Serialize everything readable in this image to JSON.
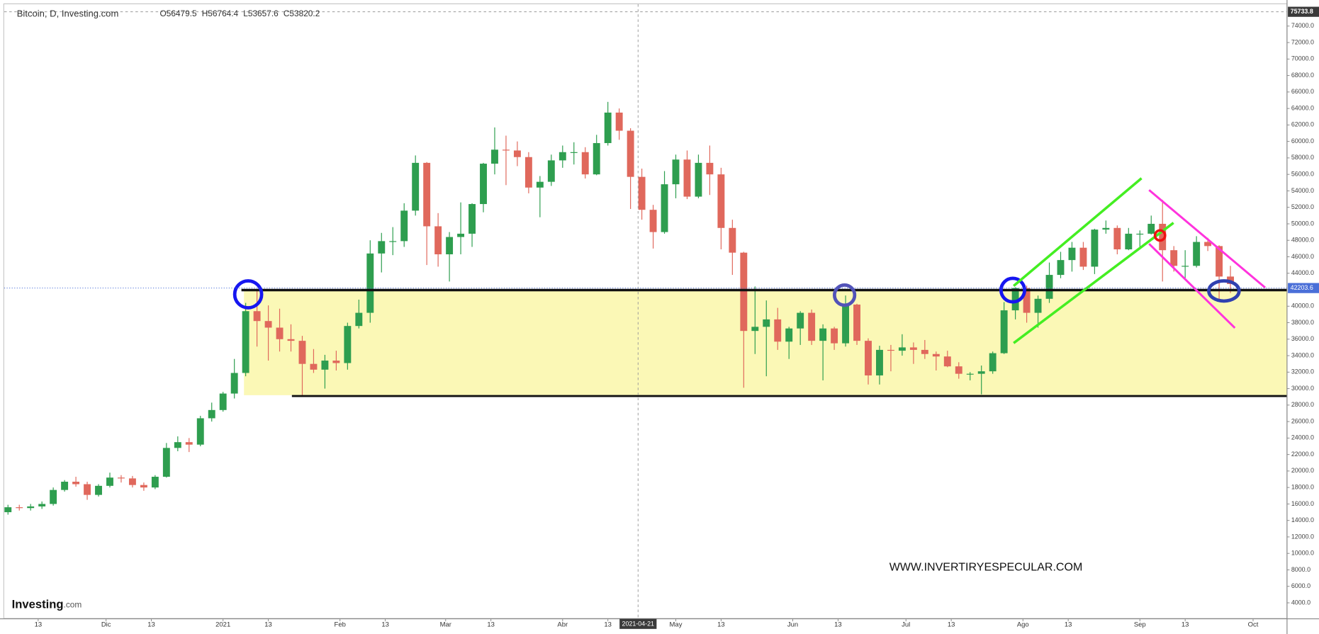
{
  "chart_data": {
    "type": "candlestick",
    "title": "Bitcoin, D, Investing.com",
    "header_values": [
      "O56479.5",
      "H56764.4",
      "L53657.6",
      "C53820.2"
    ],
    "watermark": "WWW.INVERTIRYESPECULAR.COM",
    "logo": [
      "Investing",
      ".com"
    ],
    "up_color": "#2e9e4f",
    "down_color": "#e0685c",
    "last_price": 42203.6,
    "crosshair": {
      "date": "2021-04-21",
      "price": 75733.8
    },
    "xlim": [
      "2020-11-04",
      "2021-10-10"
    ],
    "ylim": [
      2160,
      76650
    ],
    "xticks": [
      {
        "value": "2020-11-13",
        "label": "13"
      },
      {
        "value": "2020-12-01",
        "label": "Dic"
      },
      {
        "value": "2020-12-13",
        "label": "13"
      },
      {
        "value": "2021-01-01",
        "label": "2021"
      },
      {
        "value": "2021-01-13",
        "label": "13"
      },
      {
        "value": "2021-02-01",
        "label": "Feb"
      },
      {
        "value": "2021-02-13",
        "label": "13"
      },
      {
        "value": "2021-03-01",
        "label": "Mar"
      },
      {
        "value": "2021-03-13",
        "label": "13"
      },
      {
        "value": "2021-04-01",
        "label": "Abr"
      },
      {
        "value": "2021-04-13",
        "label": "13"
      },
      {
        "value": "2021-05-01",
        "label": "May"
      },
      {
        "value": "2021-05-13",
        "label": "13"
      },
      {
        "value": "2021-06-01",
        "label": "Jun"
      },
      {
        "value": "2021-06-13",
        "label": "13"
      },
      {
        "value": "2021-07-01",
        "label": "Jul"
      },
      {
        "value": "2021-07-13",
        "label": "13"
      },
      {
        "value": "2021-08-01",
        "label": "Ago"
      },
      {
        "value": "2021-08-13",
        "label": "13"
      },
      {
        "value": "2021-09-01",
        "label": "Sep"
      },
      {
        "value": "2021-09-13",
        "label": "13"
      },
      {
        "value": "2021-10-01",
        "label": "Oct"
      }
    ],
    "yticks": [
      {
        "value": 4000,
        "label": "4000.0"
      },
      {
        "value": 6000,
        "label": "6000.0"
      },
      {
        "value": 8000,
        "label": "8000.0"
      },
      {
        "value": 10000,
        "label": "10000.0"
      },
      {
        "value": 12000,
        "label": "12000.0"
      },
      {
        "value": 14000,
        "label": "14000.0"
      },
      {
        "value": 16000,
        "label": "16000.0"
      },
      {
        "value": 18000,
        "label": "18000.0"
      },
      {
        "value": 20000,
        "label": "20000.0"
      },
      {
        "value": 22000,
        "label": "22000.0"
      },
      {
        "value": 24000,
        "label": "24000.0"
      },
      {
        "value": 26000,
        "label": "26000.0"
      },
      {
        "value": 28000,
        "label": "28000.0"
      },
      {
        "value": 30000,
        "label": "30000.0"
      },
      {
        "value": 32000,
        "label": "32000.0"
      },
      {
        "value": 34000,
        "label": "34000.0"
      },
      {
        "value": 36000,
        "label": "36000.0"
      },
      {
        "value": 38000,
        "label": "38000.0"
      },
      {
        "value": 40000,
        "label": "40000.0"
      },
      {
        "value": 44000,
        "label": "44000.0"
      },
      {
        "value": 46000,
        "label": "46000.0"
      },
      {
        "value": 48000,
        "label": "48000.0"
      },
      {
        "value": 50000,
        "label": "50000.0"
      },
      {
        "value": 52000,
        "label": "52000.0"
      },
      {
        "value": 54000,
        "label": "54000.0"
      },
      {
        "value": 56000,
        "label": "56000.0"
      },
      {
        "value": 58000,
        "label": "58000.0"
      },
      {
        "value": 60000,
        "label": "60000.0"
      },
      {
        "value": 62000,
        "label": "62000.0"
      },
      {
        "value": 64000,
        "label": "64000.0"
      },
      {
        "value": 66000,
        "label": "66000.0"
      },
      {
        "value": 68000,
        "label": "68000.0"
      },
      {
        "value": 70000,
        "label": "70000.0"
      },
      {
        "value": 72000,
        "label": "72000.0"
      },
      {
        "value": 74000,
        "label": "74000.0"
      }
    ],
    "x": [
      "2020-11-05",
      "2020-11-08",
      "2020-11-11",
      "2020-11-14",
      "2020-11-17",
      "2020-11-20",
      "2020-11-23",
      "2020-11-26",
      "2020-11-29",
      "2020-12-02",
      "2020-12-05",
      "2020-12-08",
      "2020-12-11",
      "2020-12-14",
      "2020-12-17",
      "2020-12-20",
      "2020-12-23",
      "2020-12-26",
      "2020-12-29",
      "2021-01-01",
      "2021-01-04",
      "2021-01-07",
      "2021-01-10",
      "2021-01-13",
      "2021-01-16",
      "2021-01-19",
      "2021-01-22",
      "2021-01-25",
      "2021-01-28",
      "2021-01-31",
      "2021-02-03",
      "2021-02-06",
      "2021-02-09",
      "2021-02-12",
      "2021-02-15",
      "2021-02-18",
      "2021-02-21",
      "2021-02-24",
      "2021-02-27",
      "2021-03-02",
      "2021-03-05",
      "2021-03-08",
      "2021-03-11",
      "2021-03-14",
      "2021-03-17",
      "2021-03-20",
      "2021-03-23",
      "2021-03-26",
      "2021-03-29",
      "2021-04-01",
      "2021-04-04",
      "2021-04-07",
      "2021-04-10",
      "2021-04-13",
      "2021-04-16",
      "2021-04-19",
      "2021-04-22",
      "2021-04-25",
      "2021-04-28",
      "2021-05-01",
      "2021-05-04",
      "2021-05-07",
      "2021-05-10",
      "2021-05-13",
      "2021-05-16",
      "2021-05-19",
      "2021-05-22",
      "2021-05-25",
      "2021-05-28",
      "2021-05-31",
      "2021-06-03",
      "2021-06-06",
      "2021-06-09",
      "2021-06-12",
      "2021-06-15",
      "2021-06-18",
      "2021-06-21",
      "2021-06-24",
      "2021-06-27",
      "2021-06-30",
      "2021-07-03",
      "2021-07-06",
      "2021-07-09",
      "2021-07-12",
      "2021-07-15",
      "2021-07-18",
      "2021-07-21",
      "2021-07-24",
      "2021-07-27",
      "2021-07-30",
      "2021-08-02",
      "2021-08-05",
      "2021-08-08",
      "2021-08-11",
      "2021-08-14",
      "2021-08-17",
      "2021-08-20",
      "2021-08-23",
      "2021-08-26",
      "2021-08-29",
      "2021-09-01",
      "2021-09-04",
      "2021-09-07",
      "2021-09-10",
      "2021-09-13",
      "2021-09-16",
      "2021-09-19",
      "2021-09-22",
      "2021-09-25"
    ],
    "ohlc": [
      [
        15000,
        15900,
        14700,
        15600
      ],
      [
        15600,
        15900,
        15200,
        15500
      ],
      [
        15500,
        16000,
        15200,
        15700
      ],
      [
        15700,
        16300,
        15400,
        16000
      ],
      [
        16000,
        18000,
        15800,
        17700
      ],
      [
        17700,
        18900,
        17500,
        18700
      ],
      [
        18700,
        19300,
        18100,
        18400
      ],
      [
        18400,
        18700,
        16500,
        17100
      ],
      [
        17100,
        18400,
        16900,
        18200
      ],
      [
        18200,
        19800,
        18000,
        19200
      ],
      [
        19200,
        19500,
        18600,
        19100
      ],
      [
        19100,
        19400,
        18000,
        18300
      ],
      [
        18300,
        18600,
        17600,
        18000
      ],
      [
        18000,
        19500,
        17800,
        19300
      ],
      [
        19300,
        23400,
        19200,
        22800
      ],
      [
        22800,
        24200,
        22400,
        23500
      ],
      [
        23500,
        24000,
        22300,
        23200
      ],
      [
        23200,
        26700,
        23000,
        26400
      ],
      [
        26400,
        28300,
        26000,
        27400
      ],
      [
        27400,
        29600,
        27200,
        29400
      ],
      [
        29400,
        33600,
        28800,
        31900
      ],
      [
        31900,
        40400,
        31500,
        39400
      ],
      [
        39400,
        41900,
        35100,
        38200
      ],
      [
        38200,
        40100,
        33400,
        37400
      ],
      [
        37400,
        39700,
        34500,
        36000
      ],
      [
        36000,
        37800,
        34500,
        35800
      ],
      [
        35800,
        36400,
        29100,
        33000
      ],
      [
        33000,
        34800,
        31900,
        32300
      ],
      [
        32300,
        34100,
        30000,
        33400
      ],
      [
        33400,
        34600,
        32200,
        33100
      ],
      [
        33100,
        38000,
        32300,
        37600
      ],
      [
        37600,
        40800,
        37300,
        39200
      ],
      [
        39200,
        48000,
        38000,
        46400
      ],
      [
        46400,
        48900,
        44100,
        47900
      ],
      [
        47900,
        49600,
        46200,
        47900
      ],
      [
        47900,
        52500,
        47200,
        51600
      ],
      [
        51600,
        58300,
        51000,
        57400
      ],
      [
        57400,
        57500,
        45000,
        49700
      ],
      [
        49700,
        51300,
        44800,
        46300
      ],
      [
        46300,
        49000,
        43000,
        48400
      ],
      [
        48400,
        52600,
        46300,
        48800
      ],
      [
        48800,
        52500,
        47200,
        52400
      ],
      [
        52400,
        57400,
        51400,
        57300
      ],
      [
        57300,
        61700,
        56000,
        59000
      ],
      [
        59000,
        60700,
        54700,
        58900
      ],
      [
        58900,
        60000,
        57000,
        58100
      ],
      [
        58100,
        58700,
        53700,
        54400
      ],
      [
        54400,
        55800,
        50800,
        55100
      ],
      [
        55100,
        58400,
        54600,
        57700
      ],
      [
        57700,
        59500,
        56800,
        58700
      ],
      [
        58700,
        59900,
        57200,
        58700
      ],
      [
        58700,
        59300,
        55500,
        56000
      ],
      [
        56000,
        60800,
        55900,
        59800
      ],
      [
        59800,
        64800,
        59500,
        63500
      ],
      [
        63500,
        64000,
        60200,
        61300
      ],
      [
        61300,
        61600,
        51800,
        55700
      ],
      [
        55700,
        56700,
        50500,
        51700
      ],
      [
        51700,
        52300,
        47000,
        49000
      ],
      [
        49000,
        56400,
        48800,
        54800
      ],
      [
        54800,
        58400,
        53100,
        57800
      ],
      [
        57800,
        58900,
        53000,
        53300
      ],
      [
        53300,
        58400,
        53100,
        57400
      ],
      [
        57400,
        59500,
        53500,
        56000
      ],
      [
        56000,
        56800,
        46900,
        49500
      ],
      [
        49500,
        50500,
        43800,
        46500
      ],
      [
        46500,
        46600,
        30100,
        37000
      ],
      [
        37000,
        42400,
        34200,
        37500
      ],
      [
        37500,
        40700,
        31500,
        38400
      ],
      [
        38400,
        39800,
        34700,
        35700
      ],
      [
        35700,
        37500,
        33600,
        37300
      ],
      [
        37300,
        39400,
        35300,
        39200
      ],
      [
        39200,
        39600,
        35300,
        35800
      ],
      [
        35800,
        37800,
        31000,
        37300
      ],
      [
        37300,
        37500,
        34700,
        35500
      ],
      [
        35500,
        41300,
        35100,
        40200
      ],
      [
        40200,
        40300,
        35300,
        35800
      ],
      [
        35800,
        36100,
        30500,
        31600
      ],
      [
        31600,
        35200,
        30500,
        34700
      ],
      [
        34700,
        35300,
        32100,
        34600
      ],
      [
        34600,
        36600,
        34000,
        35000
      ],
      [
        35000,
        35600,
        33000,
        34700
      ],
      [
        34700,
        35900,
        33600,
        34200
      ],
      [
        34200,
        34500,
        32200,
        33900
      ],
      [
        33900,
        34600,
        32600,
        32700
      ],
      [
        32700,
        33200,
        31200,
        31800
      ],
      [
        31800,
        32000,
        31000,
        31800
      ],
      [
        31800,
        32800,
        29300,
        32100
      ],
      [
        32100,
        34500,
        31800,
        34300
      ],
      [
        34300,
        40500,
        34200,
        39500
      ],
      [
        39500,
        42300,
        38400,
        42200
      ],
      [
        42200,
        42500,
        38000,
        39200
      ],
      [
        39200,
        41300,
        37400,
        40900
      ],
      [
        40900,
        45300,
        40400,
        43800
      ],
      [
        43800,
        46600,
        43400,
        45600
      ],
      [
        45600,
        47800,
        44200,
        47100
      ],
      [
        47100,
        47800,
        44400,
        44800
      ],
      [
        44800,
        49400,
        43900,
        49300
      ],
      [
        49300,
        50400,
        48800,
        49500
      ],
      [
        49500,
        49800,
        46300,
        46900
      ],
      [
        46900,
        49500,
        46800,
        48800
      ],
      [
        48800,
        49200,
        46900,
        48800
      ],
      [
        48800,
        51000,
        48700,
        50000
      ],
      [
        50000,
        52900,
        43000,
        46800
      ],
      [
        46800,
        47300,
        44200,
        44900
      ],
      [
        44900,
        46800,
        43400,
        44900
      ],
      [
        44900,
        48500,
        44700,
        47800
      ],
      [
        47800,
        48300,
        46700,
        47300
      ],
      [
        47300,
        47400,
        40600,
        43600
      ],
      [
        43600,
        44900,
        41600,
        42700
      ]
    ]
  }
}
